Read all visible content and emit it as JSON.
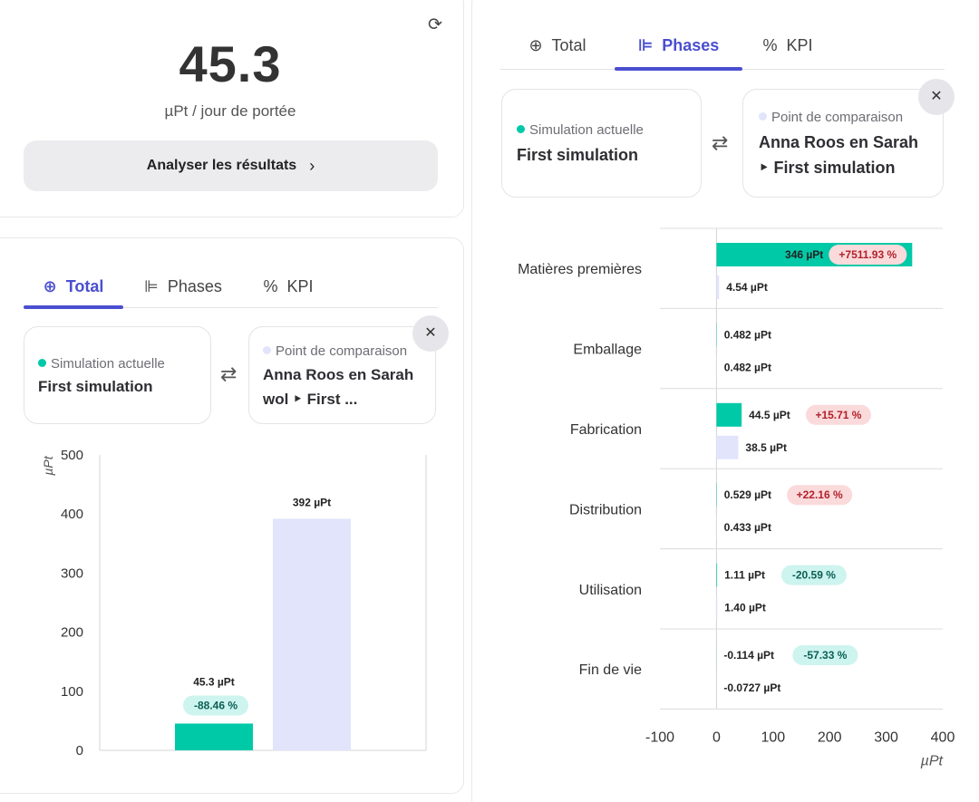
{
  "score": {
    "value": "45.3",
    "unit": "µPt / jour de portée",
    "analyse_label": "Analyser les résultats",
    "chevron_glyph": "›",
    "refresh_glyph": "⟳"
  },
  "tabs": [
    {
      "label": "Total",
      "icon": "globe-icon",
      "glyph": "⊕"
    },
    {
      "label": "Phases",
      "icon": "bar-chart-icon",
      "glyph": "⊫"
    },
    {
      "label": "KPI",
      "icon": "percent-icon",
      "glyph": "%"
    }
  ],
  "left_panel": {
    "active_tab": "Total",
    "current": {
      "caption": "Simulation actuelle",
      "name": "First simulation"
    },
    "comparison": {
      "caption": "Point de comparaison",
      "name_line1": "Anna Roos en Sarah",
      "name_line2": "wol ‣ First ..."
    },
    "swap_glyph": "⇄",
    "close_glyph": "✕"
  },
  "right_panel": {
    "active_tab": "Phases",
    "current": {
      "caption": "Simulation actuelle",
      "name": "First simulation"
    },
    "comparison": {
      "caption": "Point de comparaison",
      "name_line1": "Anna Roos en Sarah",
      "name_line2": "‣ First simulation"
    },
    "swap_glyph": "⇄",
    "close_glyph": "✕"
  },
  "colors": {
    "accent": "#4a4fd0",
    "current": "#00c9a7",
    "comparison": "#e1e4fb",
    "badge_up_bg": "#fbdadb",
    "badge_up_text": "#b0222c",
    "badge_down_bg": "#cdf4ef",
    "badge_down_text": "#0b5e55"
  },
  "chart_data": [
    {
      "type": "bar",
      "ylabel": "µPt",
      "ylim": [
        0,
        500
      ],
      "yticks": [
        0,
        100,
        200,
        300,
        400,
        500
      ],
      "series": [
        {
          "value": 45.3,
          "label": "45.3 µPt",
          "badge": "-88.46 %",
          "badge_dir": "down",
          "color": "#00c9a7"
        },
        {
          "value": 392,
          "label": "392 µPt",
          "color": "#e1e4fb"
        }
      ]
    },
    {
      "type": "bar",
      "orientation": "horizontal",
      "xlabel": "µPt",
      "xlim": [
        -100,
        400
      ],
      "xticks": [
        -100,
        0,
        100,
        200,
        300,
        400
      ],
      "categories": [
        "Matières premières",
        "Emballage",
        "Fabrication",
        "Distribution",
        "Utilisation",
        "Fin de vie"
      ],
      "series": [
        {
          "key": "current",
          "values": [
            346,
            0.482,
            44.5,
            0.529,
            1.11,
            -0.114
          ],
          "labels": [
            "346 µPt",
            "0.482 µPt",
            "44.5 µPt",
            "0.529 µPt",
            "1.11 µPt",
            "-0.114 µPt"
          ]
        },
        {
          "key": "comparison",
          "values": [
            4.54,
            0.482,
            38.5,
            0.433,
            1.4,
            -0.0727
          ],
          "labels": [
            "4.54 µPt",
            "0.482 µPt",
            "38.5 µPt",
            "0.433 µPt",
            "1.40 µPt",
            "-0.0727 µPt"
          ]
        }
      ],
      "badges": [
        {
          "text": "+7511.93 %",
          "dir": "up"
        },
        null,
        {
          "text": "+15.71 %",
          "dir": "up"
        },
        {
          "text": "+22.16 %",
          "dir": "up"
        },
        {
          "text": "-20.59 %",
          "dir": "down"
        },
        {
          "text": "-57.33 %",
          "dir": "down"
        }
      ]
    }
  ]
}
